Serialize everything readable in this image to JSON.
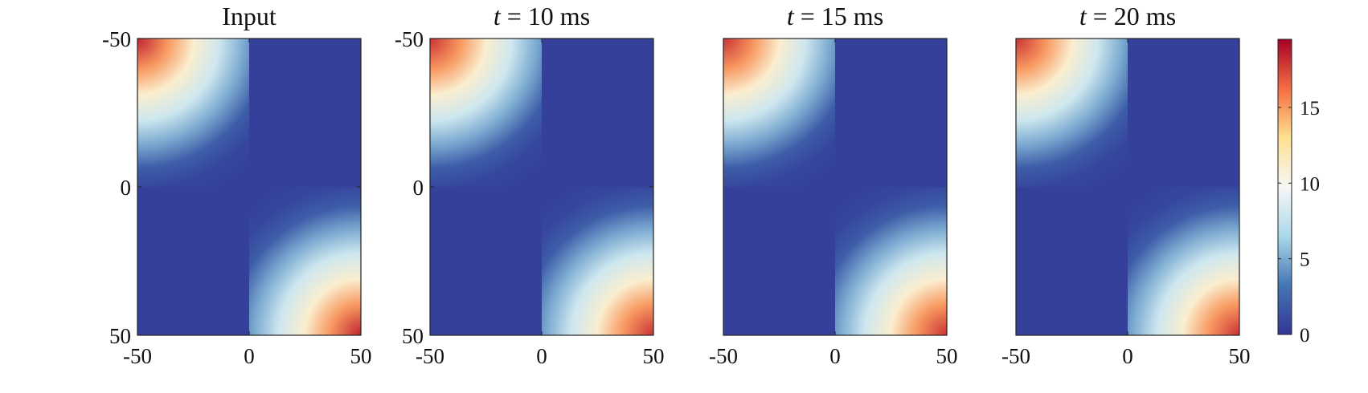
{
  "chart_data": [
    {
      "type": "heatmap",
      "title": "Input",
      "xlim": [
        -50,
        50
      ],
      "ylim": [
        -50,
        50
      ],
      "xticks": [
        "-50",
        "0",
        "50"
      ],
      "yticks": [
        "-50",
        "0",
        "50"
      ],
      "cells": [
        {
          "x": [
            -50,
            0
          ],
          "y": [
            -50,
            0
          ],
          "peak": 18.5,
          "at": [
            -50,
            -50
          ],
          "note": "high values top-left block"
        },
        {
          "x": [
            0,
            50
          ],
          "y": [
            0,
            50
          ],
          "peak": 18.5,
          "at": [
            50,
            50
          ],
          "note": "high values bottom-right block"
        },
        {
          "x": [
            0,
            50
          ],
          "y": [
            -50,
            0
          ],
          "value": 0.5
        },
        {
          "x": [
            -50,
            0
          ],
          "y": [
            0,
            50
          ],
          "value": 0.5
        }
      ]
    },
    {
      "type": "heatmap",
      "title_prefix": "t",
      "title_value": "= 10 ms",
      "xlim": [
        -50,
        50
      ],
      "ylim": [
        -50,
        50
      ],
      "xticks": [
        "-50",
        "0",
        "50"
      ],
      "yticks": [
        "-50",
        "0",
        "50"
      ],
      "cells": [
        {
          "x": [
            -50,
            0
          ],
          "y": [
            -50,
            0
          ],
          "peak": 18,
          "at": [
            -50,
            -50
          ]
        },
        {
          "x": [
            0,
            50
          ],
          "y": [
            0,
            50
          ],
          "peak": 18,
          "at": [
            50,
            50
          ]
        },
        {
          "x": [
            0,
            50
          ],
          "y": [
            -50,
            0
          ],
          "value": 0.5
        },
        {
          "x": [
            -50,
            0
          ],
          "y": [
            0,
            50
          ],
          "value": 0.5
        }
      ]
    },
    {
      "type": "heatmap",
      "title_prefix": "t",
      "title_value": "= 15 ms",
      "xlim": [
        -50,
        50
      ],
      "ylim": [
        -50,
        50
      ],
      "xticks": [
        "-50",
        "0",
        "50"
      ],
      "cells": [
        {
          "x": [
            -50,
            0
          ],
          "y": [
            -50,
            0
          ],
          "peak": 18,
          "at": [
            -50,
            -50
          ]
        },
        {
          "x": [
            0,
            50
          ],
          "y": [
            0,
            50
          ],
          "peak": 18,
          "at": [
            50,
            50
          ]
        },
        {
          "x": [
            0,
            50
          ],
          "y": [
            -50,
            0
          ],
          "value": 0.5
        },
        {
          "x": [
            -50,
            0
          ],
          "y": [
            0,
            50
          ],
          "value": 0.5
        }
      ]
    },
    {
      "type": "heatmap",
      "title_prefix": "t",
      "title_value": "= 20 ms",
      "xlim": [
        -50,
        50
      ],
      "ylim": [
        -50,
        50
      ],
      "xticks": [
        "-50",
        "0",
        "50"
      ],
      "cells": [
        {
          "x": [
            -50,
            0
          ],
          "y": [
            -50,
            0
          ],
          "peak": 18,
          "at": [
            -50,
            -50
          ]
        },
        {
          "x": [
            0,
            50
          ],
          "y": [
            0,
            50
          ],
          "peak": 18,
          "at": [
            50,
            50
          ]
        },
        {
          "x": [
            0,
            50
          ],
          "y": [
            -50,
            0
          ],
          "value": 0.5
        },
        {
          "x": [
            -50,
            0
          ],
          "y": [
            0,
            50
          ],
          "value": 0.5
        }
      ]
    }
  ],
  "colorbar": {
    "min": 0,
    "max": 19.5,
    "ticks": [
      "0",
      "5",
      "10",
      "15"
    ],
    "colors": [
      "#313695",
      "#4575b4",
      "#abd9e9",
      "#f7f7f7",
      "#fee090",
      "#f46d43",
      "#a50026"
    ]
  }
}
